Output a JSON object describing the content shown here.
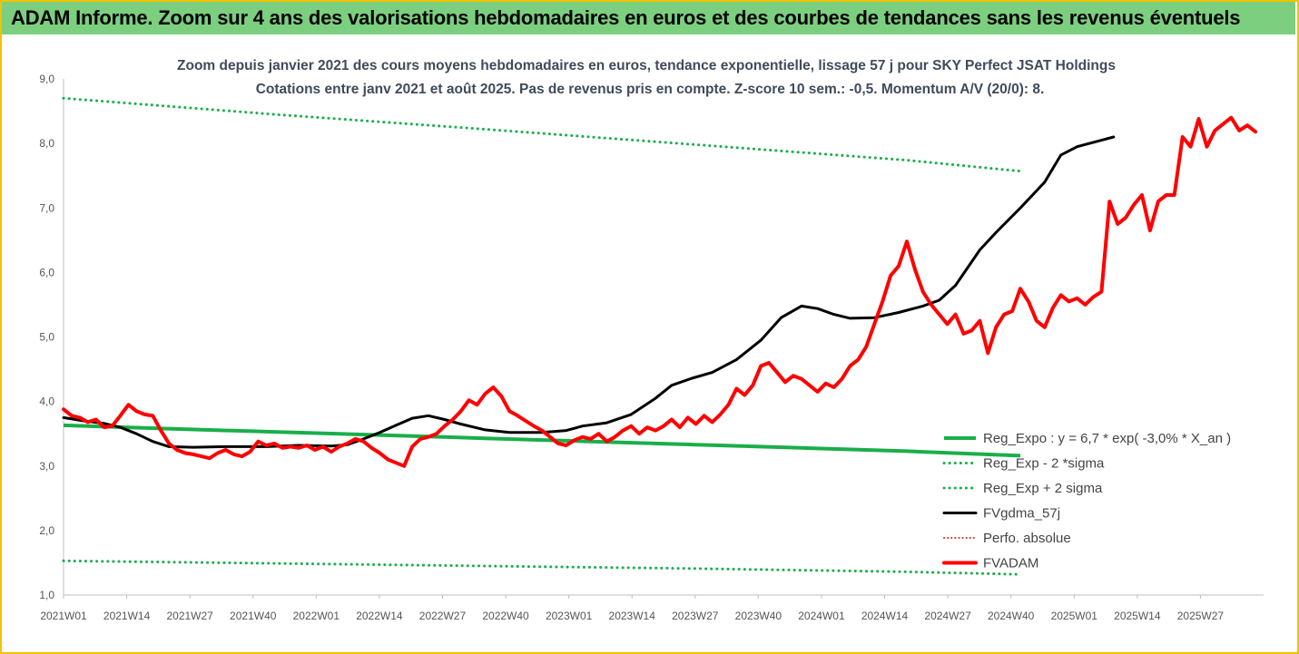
{
  "banner": "ADAM Informe. Zoom sur 4 ans des valorisations hebdomadaires en euros et des courbes de tendances sans les revenus éventuels",
  "colors": {
    "banner_bg": "#7ccf7f",
    "frame": "#f2c200",
    "reg": "#1aae4a",
    "smooth": "#000000",
    "price": "#ff0000",
    "perfo": "#e02020"
  },
  "chart_data": {
    "type": "line",
    "title": "Zoom depuis janvier 2021 des cours moyens hebdomadaires en euros, tendance exponentielle, lissage 57 j pour SKY Perfect JSAT Holdings",
    "subtitle": "Cotations entre janv 2021 et août 2025. Pas de revenus pris en compte. Z-score 10 sem.: -0,5. Momentum A/V (20/0): 8.",
    "xlabel": "",
    "ylabel": "",
    "ylim": [
      1.0,
      9.0
    ],
    "yticks": [
      "1,0",
      "2,0",
      "3,0",
      "4,0",
      "5,0",
      "6,0",
      "7,0",
      "8,0",
      "9,0"
    ],
    "xticks": [
      "2021W01",
      "2021W14",
      "2021W27",
      "2021W40",
      "2022W01",
      "2022W14",
      "2022W27",
      "2022W40",
      "2023W01",
      "2023W14",
      "2023W27",
      "2023W40",
      "2024W01",
      "2024W14",
      "2024W27",
      "2024W40",
      "2025W01",
      "2025W14",
      "2025W27"
    ],
    "grid": false,
    "legend_position": "bottom-right",
    "series": [
      {
        "name": "Reg_Expo : y = 6,7 * exp( -3,0% * X_an )",
        "style": "solid",
        "color": "#1aae4a",
        "points": [
          [
            0,
            3.63
          ],
          [
            25,
            3.58
          ],
          [
            52,
            3.53
          ],
          [
            78,
            3.48
          ],
          [
            104,
            3.43
          ],
          [
            130,
            3.38
          ],
          [
            156,
            3.33
          ],
          [
            182,
            3.28
          ],
          [
            208,
            3.23
          ],
          [
            236,
            3.16
          ]
        ]
      },
      {
        "name": "Reg_Exp - 2 *sigma",
        "style": "dotted",
        "color": "#1aae4a",
        "points": [
          [
            0,
            1.53
          ],
          [
            52,
            1.49
          ],
          [
            104,
            1.45
          ],
          [
            156,
            1.41
          ],
          [
            208,
            1.36
          ],
          [
            236,
            1.32
          ]
        ]
      },
      {
        "name": "Reg_Exp + 2 sigma",
        "style": "dotted",
        "color": "#1aae4a",
        "points": [
          [
            0,
            8.7
          ],
          [
            52,
            8.45
          ],
          [
            104,
            8.22
          ],
          [
            156,
            7.98
          ],
          [
            208,
            7.74
          ],
          [
            236,
            7.57
          ]
        ]
      },
      {
        "name": "FVgdma_57j",
        "style": "solid",
        "color": "#000000",
        "points": [
          [
            0,
            3.75
          ],
          [
            5,
            3.7
          ],
          [
            10,
            3.66
          ],
          [
            14,
            3.6
          ],
          [
            18,
            3.5
          ],
          [
            22,
            3.38
          ],
          [
            26,
            3.3
          ],
          [
            32,
            3.29
          ],
          [
            40,
            3.3
          ],
          [
            50,
            3.3
          ],
          [
            58,
            3.32
          ],
          [
            66,
            3.31
          ],
          [
            70,
            3.33
          ],
          [
            74,
            3.42
          ],
          [
            78,
            3.52
          ],
          [
            82,
            3.63
          ],
          [
            86,
            3.74
          ],
          [
            90,
            3.78
          ],
          [
            94,
            3.72
          ],
          [
            98,
            3.65
          ],
          [
            104,
            3.56
          ],
          [
            110,
            3.52
          ],
          [
            118,
            3.52
          ],
          [
            124,
            3.55
          ],
          [
            128,
            3.62
          ],
          [
            134,
            3.67
          ],
          [
            140,
            3.8
          ],
          [
            146,
            4.05
          ],
          [
            150,
            4.25
          ],
          [
            155,
            4.36
          ],
          [
            160,
            4.45
          ],
          [
            166,
            4.65
          ],
          [
            172,
            4.95
          ],
          [
            177,
            5.3
          ],
          [
            182,
            5.48
          ],
          [
            186,
            5.44
          ],
          [
            190,
            5.35
          ],
          [
            194,
            5.29
          ],
          [
            200,
            5.3
          ],
          [
            206,
            5.38
          ],
          [
            212,
            5.48
          ],
          [
            216,
            5.57
          ],
          [
            220,
            5.8
          ],
          [
            226,
            6.35
          ],
          [
            230,
            6.62
          ],
          [
            236,
            7.0
          ],
          [
            242,
            7.4
          ],
          [
            246,
            7.82
          ],
          [
            250,
            7.95
          ],
          [
            256,
            8.05
          ],
          [
            259,
            8.1
          ]
        ]
      },
      {
        "name": "Perfo. absolue",
        "style": "dotted",
        "color": "#e02020",
        "points": []
      },
      {
        "name": "FVADAM",
        "style": "solid",
        "color": "#ff0000",
        "points": [
          [
            0,
            3.88
          ],
          [
            2,
            3.78
          ],
          [
            4,
            3.75
          ],
          [
            6,
            3.68
          ],
          [
            8,
            3.72
          ],
          [
            10,
            3.6
          ],
          [
            12,
            3.62
          ],
          [
            14,
            3.78
          ],
          [
            16,
            3.95
          ],
          [
            18,
            3.85
          ],
          [
            20,
            3.8
          ],
          [
            22,
            3.78
          ],
          [
            24,
            3.55
          ],
          [
            26,
            3.35
          ],
          [
            28,
            3.25
          ],
          [
            30,
            3.2
          ],
          [
            32,
            3.18
          ],
          [
            34,
            3.15
          ],
          [
            36,
            3.12
          ],
          [
            38,
            3.2
          ],
          [
            40,
            3.25
          ],
          [
            42,
            3.18
          ],
          [
            44,
            3.15
          ],
          [
            46,
            3.22
          ],
          [
            48,
            3.38
          ],
          [
            50,
            3.32
          ],
          [
            52,
            3.35
          ],
          [
            54,
            3.28
          ],
          [
            56,
            3.3
          ],
          [
            58,
            3.28
          ],
          [
            60,
            3.32
          ],
          [
            62,
            3.25
          ],
          [
            64,
            3.3
          ],
          [
            66,
            3.22
          ],
          [
            68,
            3.3
          ],
          [
            70,
            3.35
          ],
          [
            72,
            3.42
          ],
          [
            74,
            3.38
          ],
          [
            76,
            3.28
          ],
          [
            78,
            3.2
          ],
          [
            80,
            3.1
          ],
          [
            82,
            3.05
          ],
          [
            84,
            3.0
          ],
          [
            86,
            3.3
          ],
          [
            88,
            3.42
          ],
          [
            90,
            3.45
          ],
          [
            92,
            3.5
          ],
          [
            94,
            3.62
          ],
          [
            96,
            3.72
          ],
          [
            98,
            3.85
          ],
          [
            100,
            4.02
          ],
          [
            102,
            3.95
          ],
          [
            104,
            4.12
          ],
          [
            106,
            4.22
          ],
          [
            108,
            4.08
          ],
          [
            110,
            3.85
          ],
          [
            112,
            3.78
          ],
          [
            114,
            3.7
          ],
          [
            116,
            3.62
          ],
          [
            118,
            3.55
          ],
          [
            120,
            3.45
          ],
          [
            122,
            3.35
          ],
          [
            124,
            3.32
          ],
          [
            126,
            3.4
          ],
          [
            128,
            3.45
          ],
          [
            130,
            3.42
          ],
          [
            132,
            3.5
          ],
          [
            134,
            3.38
          ],
          [
            136,
            3.45
          ],
          [
            138,
            3.55
          ],
          [
            140,
            3.62
          ],
          [
            142,
            3.5
          ],
          [
            144,
            3.6
          ],
          [
            146,
            3.55
          ],
          [
            148,
            3.62
          ],
          [
            150,
            3.72
          ],
          [
            152,
            3.6
          ],
          [
            154,
            3.75
          ],
          [
            156,
            3.65
          ],
          [
            158,
            3.78
          ],
          [
            160,
            3.68
          ],
          [
            162,
            3.8
          ],
          [
            164,
            3.95
          ],
          [
            166,
            4.2
          ],
          [
            168,
            4.1
          ],
          [
            170,
            4.25
          ],
          [
            172,
            4.55
          ],
          [
            174,
            4.6
          ],
          [
            176,
            4.45
          ],
          [
            178,
            4.3
          ],
          [
            180,
            4.4
          ],
          [
            182,
            4.35
          ],
          [
            184,
            4.25
          ],
          [
            186,
            4.15
          ],
          [
            188,
            4.28
          ],
          [
            190,
            4.22
          ],
          [
            192,
            4.35
          ],
          [
            194,
            4.55
          ],
          [
            196,
            4.65
          ],
          [
            198,
            4.85
          ],
          [
            200,
            5.2
          ],
          [
            202,
            5.55
          ],
          [
            204,
            5.95
          ],
          [
            206,
            6.1
          ],
          [
            208,
            6.48
          ],
          [
            210,
            6.05
          ],
          [
            212,
            5.7
          ],
          [
            214,
            5.5
          ],
          [
            216,
            5.35
          ],
          [
            218,
            5.2
          ],
          [
            220,
            5.35
          ],
          [
            222,
            5.05
          ],
          [
            224,
            5.1
          ],
          [
            226,
            5.25
          ],
          [
            228,
            4.75
          ],
          [
            230,
            5.15
          ],
          [
            232,
            5.35
          ],
          [
            234,
            5.4
          ],
          [
            236,
            5.75
          ],
          [
            238,
            5.55
          ],
          [
            240,
            5.25
          ],
          [
            242,
            5.15
          ],
          [
            244,
            5.45
          ],
          [
            246,
            5.65
          ],
          [
            248,
            5.55
          ],
          [
            250,
            5.6
          ],
          [
            252,
            5.5
          ],
          [
            254,
            5.62
          ],
          [
            256,
            5.7
          ],
          [
            258,
            7.1
          ],
          [
            260,
            6.75
          ],
          [
            262,
            6.85
          ],
          [
            264,
            7.05
          ],
          [
            266,
            7.2
          ],
          [
            268,
            6.65
          ],
          [
            270,
            7.1
          ],
          [
            272,
            7.2
          ],
          [
            274,
            7.2
          ],
          [
            276,
            8.1
          ],
          [
            278,
            7.95
          ],
          [
            280,
            8.38
          ],
          [
            282,
            7.95
          ],
          [
            284,
            8.2
          ],
          [
            286,
            8.3
          ],
          [
            288,
            8.4
          ],
          [
            290,
            8.2
          ],
          [
            292,
            8.28
          ],
          [
            294,
            8.18
          ]
        ]
      }
    ]
  }
}
